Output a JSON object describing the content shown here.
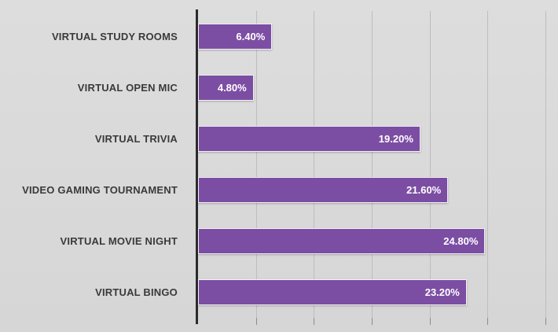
{
  "chart_data": {
    "type": "bar",
    "orientation": "horizontal",
    "title": "",
    "xlabel": "",
    "ylabel": "",
    "categories": [
      "VIRTUAL STUDY ROOMS",
      "VIRTUAL OPEN MIC",
      "VIRTUAL TRIVIA",
      "VIDEO GAMING TOURNAMENT",
      "VIRTUAL MOVIE NIGHT",
      "VIRTUAL BINGO"
    ],
    "values": [
      6.4,
      4.8,
      19.2,
      21.6,
      24.8,
      23.2
    ],
    "value_labels": [
      "6.40%",
      "4.80%",
      "19.20%",
      "21.60%",
      "24.80%",
      "23.20%"
    ],
    "xlim": [
      0,
      30
    ],
    "gridline_interval": 5,
    "grid": true,
    "legend": false,
    "colors": {
      "bar": "#7C4EA3",
      "bar_border": "#F4F2F6",
      "background": "#D6D6D6",
      "gridline": "#BDBDBD",
      "axis": "#2B2B2B",
      "category_label": "#3A3A3A",
      "data_label": "#FFFFFF",
      "tick": "#8C8C8C"
    }
  }
}
